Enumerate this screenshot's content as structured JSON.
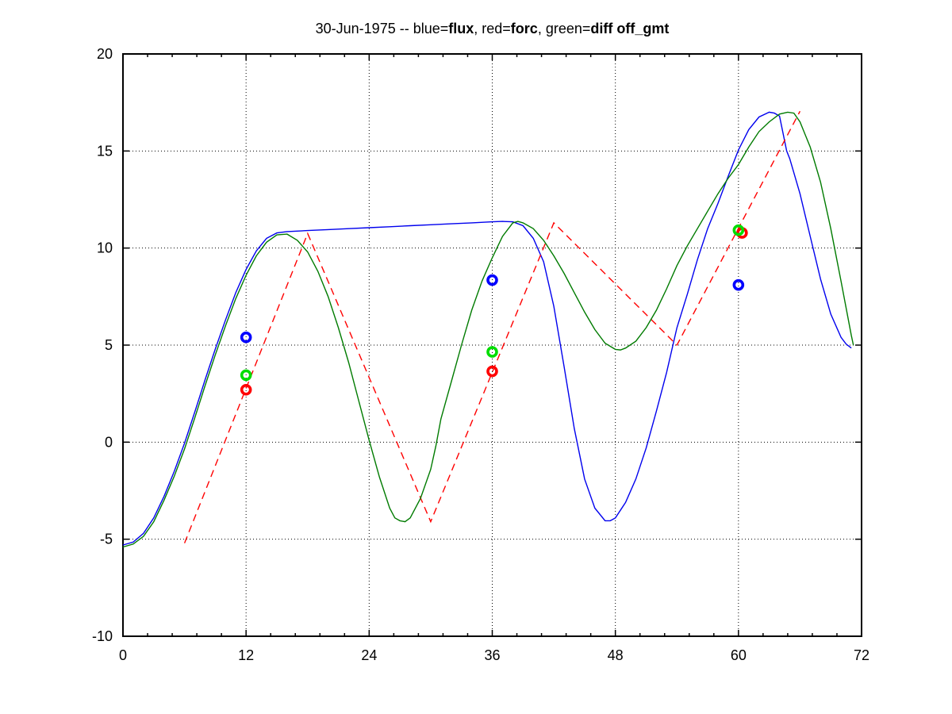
{
  "title": {
    "parts": [
      {
        "text": "30-Jun-1975 -- blue=",
        "bold": false
      },
      {
        "text": "flux",
        "bold": true
      },
      {
        "text": ", red=",
        "bold": false
      },
      {
        "text": "forc",
        "bold": true
      },
      {
        "text": ", green=",
        "bold": false
      },
      {
        "text": "diff off_gmt",
        "bold": true
      }
    ]
  },
  "chart_data": {
    "type": "line",
    "title": "30-Jun-1975 -- blue=flux, red=forc, green=diff off_gmt",
    "xlabel": "",
    "ylabel": "",
    "xlim": [
      0,
      72
    ],
    "ylim": [
      -10,
      20
    ],
    "x_ticks": [
      0,
      12,
      24,
      36,
      48,
      60,
      72
    ],
    "x_tick_labels": [
      "0",
      "12",
      "24",
      "36",
      "48",
      "60",
      "72"
    ],
    "x_minor_step": 2.4,
    "y_ticks": [
      -10,
      -5,
      0,
      5,
      10,
      15,
      20
    ],
    "y_tick_labels": [
      "-10",
      "-5",
      "0",
      "5",
      "10",
      "15",
      "20"
    ],
    "grid": "dotted-black-at-major-ticks",
    "legend_position": "in-title",
    "colors": {
      "flux": "#0000ee",
      "forc": "#ff0000",
      "diff": "#007b00",
      "marker_blue": "#0000ff",
      "marker_red": "#ff0000",
      "marker_green": "#00dd00"
    },
    "series": [
      {
        "name": "flux",
        "color": "#0000ee",
        "style": "solid",
        "points": [
          [
            0,
            -5.3
          ],
          [
            1,
            -5.15
          ],
          [
            2,
            -4.7
          ],
          [
            3,
            -3.9
          ],
          [
            4,
            -2.8
          ],
          [
            5,
            -1.5
          ],
          [
            6,
            -0.05
          ],
          [
            7,
            1.55
          ],
          [
            8,
            3.2
          ],
          [
            9,
            4.8
          ],
          [
            10,
            6.3
          ],
          [
            11,
            7.7
          ],
          [
            12,
            8.9
          ],
          [
            13,
            9.85
          ],
          [
            14,
            10.5
          ],
          [
            15,
            10.78
          ],
          [
            16,
            10.85
          ],
          [
            18,
            10.9
          ],
          [
            20,
            10.95
          ],
          [
            22,
            11.0
          ],
          [
            24,
            11.05
          ],
          [
            26,
            11.1
          ],
          [
            28,
            11.15
          ],
          [
            30,
            11.2
          ],
          [
            32,
            11.25
          ],
          [
            34,
            11.3
          ],
          [
            36,
            11.35
          ],
          [
            37,
            11.37
          ],
          [
            38,
            11.35
          ],
          [
            39,
            11.15
          ],
          [
            40,
            10.5
          ],
          [
            41,
            9.3
          ],
          [
            42,
            7.0
          ],
          [
            43,
            3.9
          ],
          [
            44,
            0.7
          ],
          [
            45,
            -1.9
          ],
          [
            46,
            -3.4
          ],
          [
            47,
            -4.05
          ],
          [
            47.5,
            -4.05
          ],
          [
            48,
            -3.9
          ],
          [
            49,
            -3.1
          ],
          [
            50,
            -1.9
          ],
          [
            51,
            -0.3
          ],
          [
            52,
            1.6
          ],
          [
            53,
            3.6
          ],
          [
            54,
            5.9
          ],
          [
            55,
            7.6
          ],
          [
            56,
            9.4
          ],
          [
            57,
            11.0
          ],
          [
            58,
            12.3
          ],
          [
            59,
            13.7
          ],
          [
            60,
            15.05
          ],
          [
            61,
            16.1
          ],
          [
            62,
            16.75
          ],
          [
            63,
            17.0
          ],
          [
            63.5,
            16.95
          ],
          [
            64,
            16.8
          ],
          [
            64.7,
            15.0
          ],
          [
            65,
            14.6
          ],
          [
            66,
            12.8
          ],
          [
            67,
            10.6
          ],
          [
            68,
            8.4
          ],
          [
            69,
            6.6
          ],
          [
            70,
            5.4
          ],
          [
            70.5,
            5.05
          ],
          [
            71,
            4.85
          ]
        ]
      },
      {
        "name": "forc",
        "color": "#ff0000",
        "style": "dashed",
        "points": [
          [
            6,
            -5.2
          ],
          [
            18,
            10.75
          ],
          [
            30,
            -4.1
          ],
          [
            42,
            11.3
          ],
          [
            54,
            5.0
          ],
          [
            66,
            17.05
          ]
        ]
      },
      {
        "name": "diff",
        "color": "#007b00",
        "style": "solid",
        "points": [
          [
            0,
            -5.4
          ],
          [
            1,
            -5.25
          ],
          [
            2,
            -4.85
          ],
          [
            3,
            -4.1
          ],
          [
            4,
            -3.0
          ],
          [
            5,
            -1.75
          ],
          [
            6,
            -0.35
          ],
          [
            7,
            1.25
          ],
          [
            8,
            2.9
          ],
          [
            9,
            4.5
          ],
          [
            10,
            6.0
          ],
          [
            11,
            7.4
          ],
          [
            12,
            8.6
          ],
          [
            13,
            9.6
          ],
          [
            14,
            10.3
          ],
          [
            15,
            10.68
          ],
          [
            16,
            10.72
          ],
          [
            17,
            10.4
          ],
          [
            18,
            9.8
          ],
          [
            19,
            8.8
          ],
          [
            20,
            7.5
          ],
          [
            21,
            5.9
          ],
          [
            22,
            4.1
          ],
          [
            23,
            2.1
          ],
          [
            24,
            0.1
          ],
          [
            25,
            -1.8
          ],
          [
            26,
            -3.4
          ],
          [
            26.5,
            -3.9
          ],
          [
            27,
            -4.05
          ],
          [
            27.5,
            -4.1
          ],
          [
            28,
            -3.9
          ],
          [
            29,
            -2.9
          ],
          [
            30,
            -1.4
          ],
          [
            30.5,
            -0.2
          ],
          [
            31,
            1.2
          ],
          [
            32,
            3.1
          ],
          [
            33,
            5.0
          ],
          [
            34,
            6.8
          ],
          [
            35,
            8.3
          ],
          [
            36,
            9.5
          ],
          [
            37,
            10.6
          ],
          [
            38,
            11.3
          ],
          [
            38.5,
            11.37
          ],
          [
            39,
            11.3
          ],
          [
            40,
            11.0
          ],
          [
            41,
            10.4
          ],
          [
            42,
            9.6
          ],
          [
            43,
            8.7
          ],
          [
            44,
            7.7
          ],
          [
            45,
            6.7
          ],
          [
            46,
            5.8
          ],
          [
            47,
            5.1
          ],
          [
            48,
            4.78
          ],
          [
            48.5,
            4.75
          ],
          [
            49,
            4.85
          ],
          [
            50,
            5.2
          ],
          [
            51,
            5.9
          ],
          [
            52,
            6.8
          ],
          [
            53,
            7.9
          ],
          [
            54,
            9.1
          ],
          [
            55,
            10.1
          ],
          [
            56,
            11.0
          ],
          [
            57,
            11.9
          ],
          [
            58,
            12.8
          ],
          [
            59,
            13.6
          ],
          [
            60,
            14.3
          ],
          [
            61,
            15.2
          ],
          [
            62,
            16.0
          ],
          [
            63,
            16.5
          ],
          [
            64,
            16.9
          ],
          [
            64.8,
            17.0
          ],
          [
            65.4,
            16.95
          ],
          [
            66,
            16.5
          ],
          [
            67,
            15.2
          ],
          [
            68,
            13.4
          ],
          [
            69,
            11.0
          ],
          [
            70,
            8.3
          ],
          [
            71,
            5.5
          ],
          [
            71.2,
            5.0
          ]
        ]
      }
    ],
    "markers": [
      {
        "name": "flux-points",
        "color": "#0000ff",
        "shape": "circle",
        "points": [
          [
            12,
            5.4
          ],
          [
            36,
            8.35
          ],
          [
            60,
            8.1
          ]
        ]
      },
      {
        "name": "forc-points",
        "color": "#ff0000",
        "shape": "circle",
        "points": [
          [
            12,
            2.7
          ],
          [
            36,
            3.65
          ],
          [
            60.35,
            10.78
          ]
        ]
      },
      {
        "name": "diff-points",
        "color": "#00dd00",
        "shape": "circle",
        "points": [
          [
            12,
            3.45
          ],
          [
            36,
            4.65
          ],
          [
            60,
            10.92
          ]
        ]
      }
    ]
  }
}
